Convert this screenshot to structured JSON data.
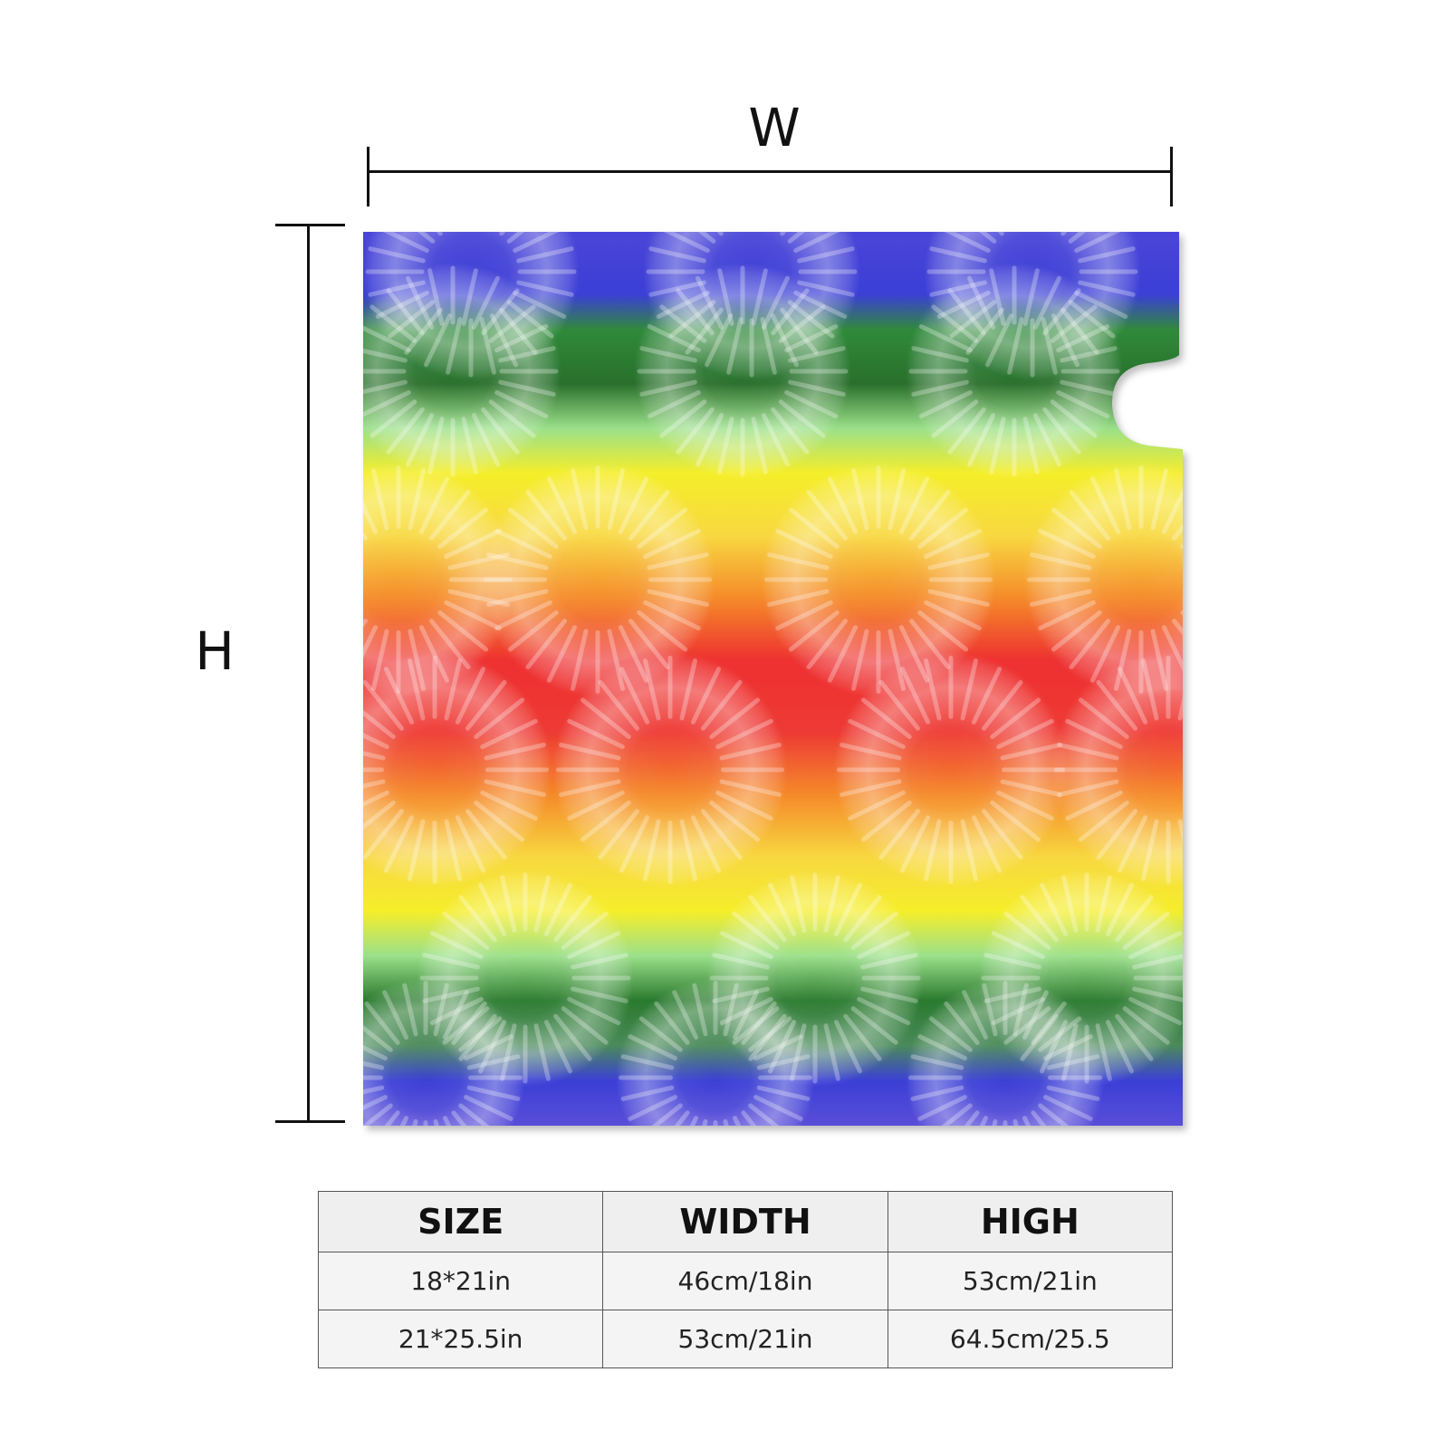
{
  "dimensions": {
    "width_label": "W",
    "height_label": "H"
  },
  "product": {
    "pattern": "rainbow tie-dye",
    "colors": [
      "#3b3fd6",
      "#2a7a2e",
      "#f5ee2a",
      "#f58a2a",
      "#ee3030"
    ]
  },
  "size_table": {
    "headers": [
      "SIZE",
      "WIDTH",
      "HIGH"
    ],
    "rows": [
      [
        "18*21in",
        "46cm/18in",
        "53cm/21in"
      ],
      [
        "21*25.5in",
        "53cm/21in",
        "64.5cm/25.5"
      ]
    ]
  }
}
